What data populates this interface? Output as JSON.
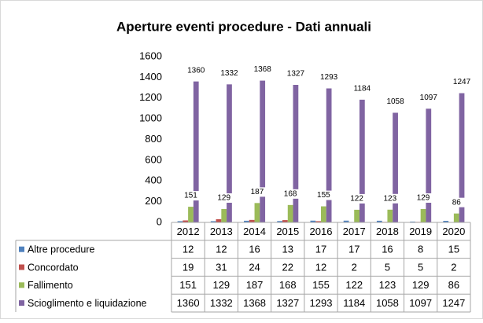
{
  "chart_data": {
    "type": "bar",
    "title": "Aperture eventi procedure - Dati annuali",
    "categories": [
      "2012",
      "2013",
      "2014",
      "2015",
      "2016",
      "2017",
      "2018",
      "2019",
      "2020"
    ],
    "series": [
      {
        "name": "Altre procedure",
        "color": "#4f81bd",
        "data_labels": false,
        "values": [
          12,
          12,
          16,
          13,
          17,
          17,
          16,
          8,
          15
        ]
      },
      {
        "name": "Concordato",
        "color": "#c0504d",
        "data_labels": false,
        "values": [
          19,
          31,
          24,
          22,
          12,
          2,
          5,
          5,
          2
        ]
      },
      {
        "name": "Fallimento",
        "color": "#9bbb59",
        "data_labels": true,
        "values": [
          151,
          129,
          187,
          168,
          155,
          122,
          123,
          129,
          86
        ]
      },
      {
        "name": "Scioglimento e liquidazione",
        "color": "#8064a2",
        "data_labels": true,
        "values": [
          1360,
          1332,
          1368,
          1327,
          1293,
          1184,
          1058,
          1097,
          1247
        ]
      }
    ],
    "ylim": [
      0,
      1600
    ],
    "yticks": [
      0,
      200,
      400,
      600,
      800,
      1000,
      1200,
      1400,
      1600
    ],
    "grid": false
  }
}
